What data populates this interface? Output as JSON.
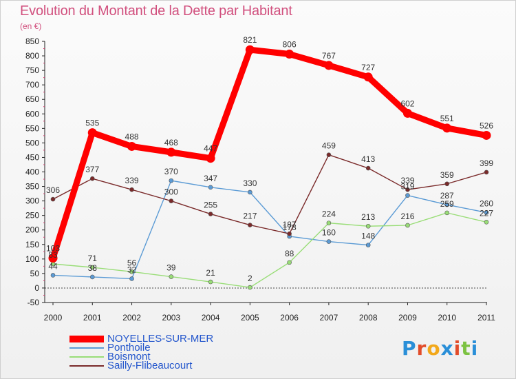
{
  "title": "Evolution du Montant de la Dette par Habitant",
  "subtitle": "(en €)",
  "brand": "Proxiti",
  "chart_data": {
    "type": "line",
    "title": "Evolution du Montant de la Dette par Habitant",
    "subtitle": "(en €)",
    "xlabel": "",
    "ylabel": "",
    "x": [
      "2000",
      "2001",
      "2002",
      "2003",
      "2004",
      "2005",
      "2006",
      "2007",
      "2008",
      "2009",
      "2010",
      "2011"
    ],
    "ylim": [
      -50,
      850
    ],
    "yticks": [
      -50,
      0,
      50,
      100,
      150,
      200,
      250,
      300,
      350,
      400,
      450,
      500,
      550,
      600,
      650,
      700,
      750,
      800,
      850
    ],
    "grid": false,
    "legend_position": "bottom-left",
    "series": [
      {
        "name": "NOYELLES-SUR-MER",
        "color": "#ff0000",
        "values": [
          103,
          535,
          488,
          468,
          447,
          821,
          806,
          767,
          727,
          602,
          551,
          526
        ]
      },
      {
        "name": "Ponthoile",
        "color": "#5b9bd5",
        "values": [
          44,
          38,
          32,
          370,
          347,
          330,
          178,
          160,
          148,
          319,
          287,
          260
        ]
      },
      {
        "name": "Boismont",
        "color": "#99dd77",
        "values": [
          83,
          71,
          56,
          39,
          21,
          2,
          88,
          224,
          213,
          216,
          259,
          227
        ]
      },
      {
        "name": "Sailly-Flibeaucourt",
        "color": "#7a2a2a",
        "values": [
          306,
          377,
          339,
          300,
          255,
          217,
          187,
          459,
          413,
          339,
          359,
          399
        ]
      }
    ]
  }
}
